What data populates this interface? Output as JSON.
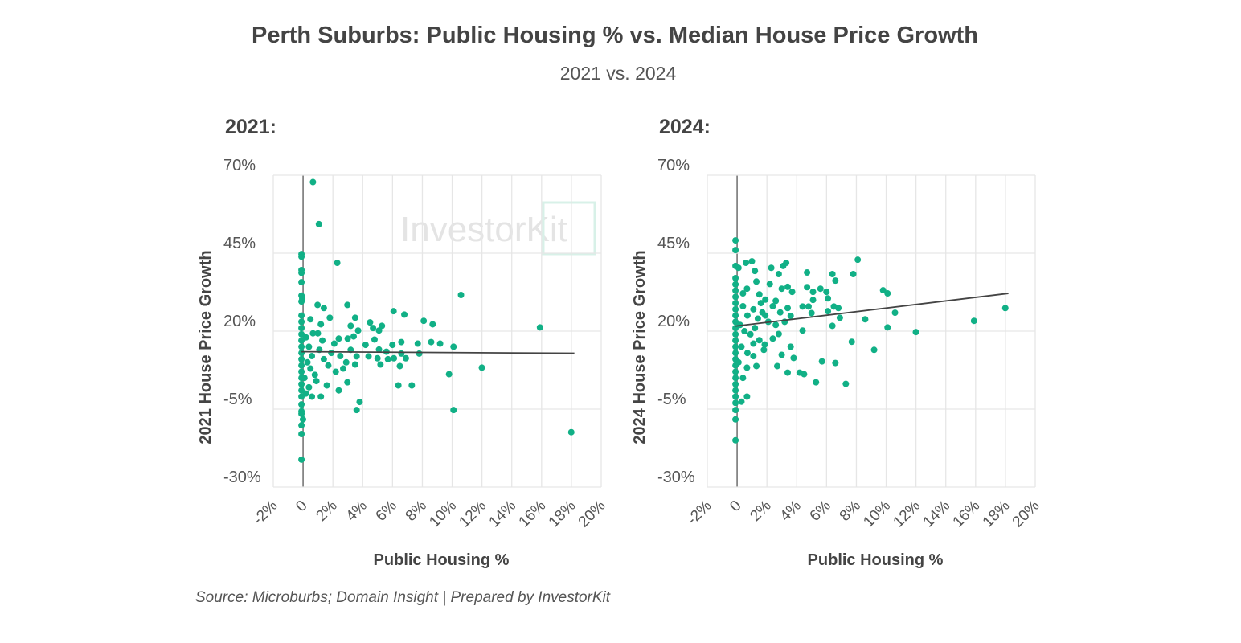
{
  "title": "Perth Suburbs: Public Housing % vs. Median House Price Growth",
  "subtitle": "2021 vs. 2024",
  "source": "Source: Microburbs; Domain Insight | Prepared by InvestorKit",
  "watermark": "InvestorKit",
  "colors": {
    "points": "#11b086",
    "trend": "#444444",
    "grid": "#e6e6e6"
  },
  "chart_data": [
    {
      "type": "scatter",
      "panel_title": "2021:",
      "xlabel": "Public Housing %",
      "ylabel": "2021 House Price Growth",
      "xlim": [
        -2,
        20
      ],
      "ylim": [
        -30,
        70
      ],
      "xticks": [
        -2,
        0,
        2,
        4,
        6,
        8,
        10,
        12,
        14,
        16,
        18,
        20
      ],
      "xtick_labels": [
        "-2%",
        "0",
        "2%",
        "4%",
        "6%",
        "8%",
        "10%",
        "12%",
        "14%",
        "16%",
        "18%",
        "20%"
      ],
      "yticks": [
        70,
        45,
        20,
        -5,
        -30
      ],
      "ytick_labels": [
        "70%",
        "45%",
        "20%",
        "-5%",
        "-30%"
      ],
      "grid": true,
      "trendline": {
        "x": [
          0,
          18.2
        ],
        "y": [
          13.4,
          12.9
        ]
      },
      "points": [
        [
          0.77,
          67.8
        ],
        [
          1.17,
          54.3
        ],
        [
          0,
          44.7
        ],
        [
          0,
          43.9
        ],
        [
          2.4,
          41.9
        ],
        [
          0,
          39.6
        ],
        [
          0,
          38.7
        ],
        [
          0,
          35.7
        ],
        [
          0,
          31.4
        ],
        [
          0.05,
          30.5
        ],
        [
          0,
          29.5
        ],
        [
          1.08,
          28.4
        ],
        [
          1.5,
          27.4
        ],
        [
          3.08,
          28.4
        ],
        [
          10.7,
          31.6
        ],
        [
          6.18,
          26.4
        ],
        [
          6.9,
          25.3
        ],
        [
          8.2,
          23.3
        ],
        [
          8.8,
          22.2
        ],
        [
          16.0,
          21.2
        ],
        [
          0.6,
          23.8
        ],
        [
          1.9,
          24.3
        ],
        [
          3.6,
          24.3
        ],
        [
          1.3,
          22.2
        ],
        [
          3.3,
          21.7
        ],
        [
          3.8,
          20.2
        ],
        [
          4.6,
          22.8
        ],
        [
          5.4,
          21.7
        ],
        [
          5.2,
          20.2
        ],
        [
          4.8,
          21
        ],
        [
          0.77,
          19.3
        ],
        [
          1.1,
          19.3
        ],
        [
          2.5,
          17.6
        ],
        [
          3.5,
          18.3
        ],
        [
          3.1,
          17.6
        ],
        [
          4.9,
          17.3
        ],
        [
          4.3,
          15.6
        ],
        [
          6.1,
          15.6
        ],
        [
          6.7,
          16.5
        ],
        [
          7.8,
          16
        ],
        [
          8.7,
          16.5
        ],
        [
          9.3,
          16
        ],
        [
          10.2,
          15
        ],
        [
          5.2,
          14.1
        ],
        [
          5.7,
          13.4
        ],
        [
          7.9,
          12.8
        ],
        [
          6.7,
          12.8
        ],
        [
          4.5,
          11.9
        ],
        [
          5.1,
          11.3
        ],
        [
          5.8,
          11
        ],
        [
          6.2,
          11.3
        ],
        [
          7,
          11.3
        ],
        [
          3.7,
          11.9
        ],
        [
          5.3,
          9.3
        ],
        [
          6.6,
          8.8
        ],
        [
          3.6,
          9.3
        ],
        [
          12.1,
          8.3
        ],
        [
          9.9,
          6.2
        ],
        [
          6.5,
          2.6
        ],
        [
          7.4,
          2.6
        ],
        [
          3.08,
          3.6
        ],
        [
          1.7,
          2.6
        ],
        [
          2.5,
          1.0
        ],
        [
          1.3,
          -1.0
        ],
        [
          0.7,
          -1.0
        ],
        [
          0.3,
          0.0
        ],
        [
          3.9,
          -2.7
        ],
        [
          3.7,
          -5.3
        ],
        [
          10.2,
          -5.3
        ],
        [
          18.1,
          -12.4
        ],
        [
          0,
          -3.5
        ],
        [
          0,
          -5.7
        ],
        [
          0,
          -6.5
        ],
        [
          0.1,
          -8.3
        ],
        [
          0,
          -10.2
        ],
        [
          0,
          -13
        ],
        [
          0,
          -21.2
        ],
        [
          0,
          25
        ],
        [
          0,
          23
        ],
        [
          0,
          21
        ],
        [
          0,
          19
        ],
        [
          0,
          17
        ],
        [
          0,
          15
        ],
        [
          0,
          13
        ],
        [
          0,
          11
        ],
        [
          0,
          9
        ],
        [
          0,
          7
        ],
        [
          0,
          5
        ],
        [
          0,
          3
        ],
        [
          0,
          1
        ],
        [
          0,
          -1
        ],
        [
          0.3,
          18
        ],
        [
          0.5,
          15
        ],
        [
          0.7,
          12
        ],
        [
          0.4,
          10
        ],
        [
          0.6,
          8
        ],
        [
          0.9,
          6
        ],
        [
          1.2,
          14
        ],
        [
          1.5,
          11
        ],
        [
          1.8,
          9
        ],
        [
          2.0,
          13
        ],
        [
          2.2,
          16
        ],
        [
          2.6,
          12
        ],
        [
          2.8,
          8
        ],
        [
          3.0,
          10
        ],
        [
          3.3,
          14
        ],
        [
          1.0,
          4
        ],
        [
          0.5,
          2
        ],
        [
          1.4,
          17
        ],
        [
          0.2,
          5
        ],
        [
          2.3,
          7
        ]
      ]
    },
    {
      "type": "scatter",
      "panel_title": "2024:",
      "xlabel": "Public Housing %",
      "ylabel": "2024 House Price Growth",
      "xlim": [
        -2,
        20
      ],
      "ylim": [
        -30,
        70
      ],
      "xticks": [
        -2,
        0,
        2,
        4,
        6,
        8,
        10,
        12,
        14,
        16,
        18,
        20
      ],
      "xtick_labels": [
        "-2%",
        "0",
        "2%",
        "4%",
        "6%",
        "8%",
        "10%",
        "12%",
        "14%",
        "16%",
        "18%",
        "20%"
      ],
      "yticks": [
        70,
        45,
        20,
        -5,
        -30
      ],
      "ytick_labels": [
        "70%",
        "45%",
        "20%",
        "-5%",
        "-30%"
      ],
      "grid": true,
      "trendline": {
        "x": [
          0,
          18.2
        ],
        "y": [
          21.6,
          32.1
        ]
      },
      "points": [
        [
          0,
          49.1
        ],
        [
          0,
          46
        ],
        [
          0,
          40.9
        ],
        [
          0.2,
          40.3
        ],
        [
          0.7,
          41.9
        ],
        [
          1.1,
          42.4
        ],
        [
          1.3,
          39.3
        ],
        [
          2.4,
          40.3
        ],
        [
          2.9,
          38.3
        ],
        [
          3.2,
          40.9
        ],
        [
          3.4,
          41.9
        ],
        [
          8.2,
          42.9
        ],
        [
          7.9,
          38.3
        ],
        [
          6.5,
          38.3
        ],
        [
          6.7,
          36.2
        ],
        [
          4.8,
          38.8
        ],
        [
          0,
          37
        ],
        [
          1.4,
          35.9
        ],
        [
          2.3,
          35.1
        ],
        [
          3.1,
          33.6
        ],
        [
          3.5,
          34.2
        ],
        [
          3.8,
          32.6
        ],
        [
          4.8,
          34.1
        ],
        [
          5.2,
          32.6
        ],
        [
          5.7,
          33.6
        ],
        [
          6.1,
          32.6
        ],
        [
          6.2,
          30.5
        ],
        [
          5.2,
          30
        ],
        [
          9.9,
          33.1
        ],
        [
          10.2,
          32.1
        ],
        [
          10.7,
          25.9
        ],
        [
          18.1,
          27.4
        ],
        [
          16.0,
          23.3
        ],
        [
          12.1,
          19.7
        ],
        [
          10.2,
          21.2
        ],
        [
          8.7,
          23.8
        ],
        [
          7,
          24.3
        ],
        [
          6.5,
          21.7
        ],
        [
          6.9,
          27.4
        ],
        [
          6.6,
          27.9
        ],
        [
          6.2,
          26.4
        ],
        [
          4.5,
          27.9
        ],
        [
          4.9,
          27.9
        ],
        [
          5.1,
          25.8
        ],
        [
          4.5,
          20.2
        ],
        [
          3.7,
          24.9
        ],
        [
          3.5,
          27.4
        ],
        [
          2.7,
          29.7
        ],
        [
          2.0,
          30.1
        ],
        [
          1.6,
          31.8
        ],
        [
          0.77,
          33.6
        ],
        [
          0.5,
          32.1
        ],
        [
          7.8,
          16.6
        ],
        [
          9.3,
          14
        ],
        [
          3.7,
          15
        ],
        [
          3.9,
          11.4
        ],
        [
          3.1,
          12.4
        ],
        [
          2.5,
          17.6
        ],
        [
          2.9,
          19.1
        ],
        [
          1.96,
          15.7
        ],
        [
          1.6,
          17.1
        ],
        [
          1.2,
          16
        ],
        [
          1.9,
          14
        ],
        [
          1.2,
          12
        ],
        [
          1.4,
          8.8
        ],
        [
          0.77,
          8.3
        ],
        [
          2.8,
          8.8
        ],
        [
          3.5,
          6.7
        ],
        [
          4.3,
          6.7
        ],
        [
          4.6,
          6.2
        ],
        [
          5.4,
          3.6
        ],
        [
          5.8,
          10.3
        ],
        [
          6.7,
          9.8
        ],
        [
          7.4,
          3.1
        ],
        [
          0.4,
          -2.6
        ],
        [
          0.77,
          -1
        ],
        [
          0,
          -5.3
        ],
        [
          0,
          -8.3
        ],
        [
          0,
          -15
        ],
        [
          0,
          35
        ],
        [
          0,
          33
        ],
        [
          0,
          31
        ],
        [
          0,
          29
        ],
        [
          0,
          27
        ],
        [
          0,
          25
        ],
        [
          0,
          23
        ],
        [
          0,
          21
        ],
        [
          0,
          19
        ],
        [
          0,
          17
        ],
        [
          0,
          15
        ],
        [
          0,
          13
        ],
        [
          0,
          11
        ],
        [
          0,
          9
        ],
        [
          0,
          7
        ],
        [
          0,
          5
        ],
        [
          0,
          3
        ],
        [
          0,
          1
        ],
        [
          0,
          -1
        ],
        [
          0,
          -3
        ],
        [
          0.5,
          28
        ],
        [
          0.8,
          25
        ],
        [
          1.2,
          27
        ],
        [
          1.5,
          24
        ],
        [
          0.3,
          22
        ],
        [
          0.6,
          20
        ],
        [
          1.0,
          19
        ],
        [
          1.8,
          26
        ],
        [
          2.2,
          23
        ],
        [
          2.5,
          28
        ],
        [
          3.0,
          26
        ],
        [
          2.7,
          22
        ],
        [
          0.4,
          15
        ],
        [
          0.8,
          13
        ],
        [
          0.2,
          10
        ],
        [
          0.5,
          5
        ],
        [
          1.3,
          21
        ],
        [
          2.0,
          25
        ],
        [
          3.3,
          23
        ],
        [
          1.7,
          29
        ]
      ]
    }
  ]
}
